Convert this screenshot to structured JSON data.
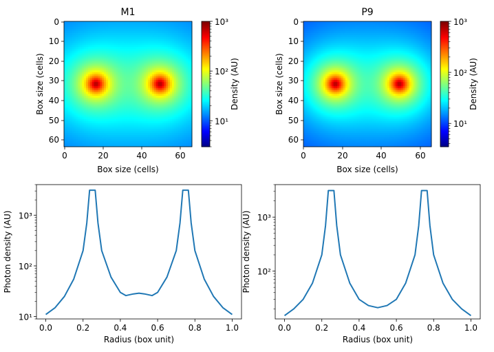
{
  "chart_data": [
    {
      "type": "heatmap",
      "title": "M1",
      "xlabel": "Box size (cells)",
      "ylabel": "Box size (cells)",
      "x_ticks": [
        "0",
        "20",
        "40",
        "60"
      ],
      "y_ticks": [
        "0",
        "10",
        "20",
        "30",
        "40",
        "50",
        "60"
      ],
      "grid_size": 64,
      "sources": [
        [
          15.5,
          31.5
        ],
        [
          47.5,
          31.5
        ]
      ],
      "colorbar": {
        "label": "Density (AU)",
        "scale": "log",
        "range": [
          3,
          1000
        ],
        "tick_labels": [
          "10¹",
          "10²",
          "10³"
        ],
        "colormap": "jet"
      }
    },
    {
      "type": "heatmap",
      "title": "P9",
      "xlabel": "Box size (cells)",
      "ylabel": "Box size (cells)",
      "x_ticks": [
        "0",
        "20",
        "40",
        "60"
      ],
      "y_ticks": [
        "0",
        "10",
        "20",
        "30",
        "40",
        "50",
        "60"
      ],
      "grid_size": 64,
      "sources": [
        [
          15.5,
          31.5
        ],
        [
          47.5,
          31.5
        ]
      ],
      "colorbar": {
        "label": "Density (AU)",
        "scale": "log",
        "range": [
          3.5,
          1000
        ],
        "tick_labels": [
          "10¹",
          "10²",
          "10³"
        ],
        "colormap": "jet"
      }
    },
    {
      "type": "line",
      "xlabel": "Radius (box unit)",
      "ylabel": "Photon density (AU)",
      "yscale": "log",
      "xlim": [
        -0.05,
        1.05
      ],
      "ylim": [
        9,
        4000
      ],
      "x_ticks": [
        "0.0",
        "0.2",
        "0.4",
        "0.6",
        "0.8",
        "1.0"
      ],
      "y_tick_labels": [
        "10¹",
        "10²",
        "10³"
      ],
      "color": "#1f77b4",
      "series": [
        {
          "x": [
            0.0,
            0.05,
            0.1,
            0.15,
            0.2,
            0.22,
            0.235,
            0.25,
            0.265,
            0.28,
            0.3,
            0.35,
            0.4,
            0.43,
            0.47,
            0.5,
            0.53,
            0.57,
            0.6,
            0.65,
            0.7,
            0.72,
            0.735,
            0.75,
            0.765,
            0.78,
            0.8,
            0.85,
            0.9,
            0.95,
            1.0
          ],
          "y": [
            11,
            15,
            25,
            55,
            200,
            700,
            3100,
            3100,
            3100,
            700,
            200,
            60,
            30,
            26,
            28,
            29,
            28,
            26,
            30,
            60,
            200,
            700,
            3100,
            3100,
            3100,
            700,
            200,
            55,
            25,
            15,
            11
          ]
        }
      ]
    },
    {
      "type": "line",
      "xlabel": "Radius (box unit)",
      "ylabel": "Photon density (AU)",
      "yscale": "log",
      "xlim": [
        -0.05,
        1.05
      ],
      "ylim": [
        13,
        4000
      ],
      "x_ticks": [
        "0.0",
        "0.2",
        "0.4",
        "0.6",
        "0.8",
        "1.0"
      ],
      "y_tick_labels": [
        "10²",
        "10³"
      ],
      "color": "#1f77b4",
      "series": [
        {
          "x": [
            0.0,
            0.05,
            0.1,
            0.15,
            0.2,
            0.22,
            0.235,
            0.25,
            0.265,
            0.28,
            0.3,
            0.35,
            0.4,
            0.45,
            0.5,
            0.55,
            0.6,
            0.65,
            0.7,
            0.72,
            0.735,
            0.75,
            0.765,
            0.78,
            0.8,
            0.85,
            0.9,
            0.95,
            1.0
          ],
          "y": [
            15,
            20,
            30,
            60,
            200,
            700,
            3100,
            3100,
            3100,
            700,
            200,
            60,
            30,
            23,
            21,
            23,
            30,
            60,
            200,
            700,
            3100,
            3100,
            3100,
            700,
            200,
            60,
            30,
            20,
            15
          ]
        }
      ]
    }
  ]
}
